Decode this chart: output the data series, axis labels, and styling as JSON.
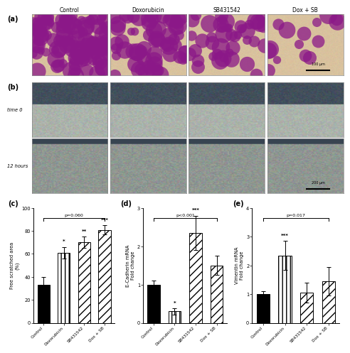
{
  "col_labels": [
    "Control",
    "Doxorubicin",
    "SB431542",
    "Dox + SB"
  ],
  "bar_categories": [
    "Control",
    "Doxorubicin",
    "SB431542",
    "Dox + SB"
  ],
  "c_values": [
    33,
    61,
    70,
    81
  ],
  "c_errors": [
    7,
    5,
    5,
    4
  ],
  "c_ylabel": "Free scratched area\n(%)",
  "c_ylim": [
    0,
    100
  ],
  "c_yticks": [
    0,
    20,
    40,
    60,
    80,
    100
  ],
  "c_pval": "p=0.060",
  "c_stars": [
    "*",
    "**",
    "***"
  ],
  "d_values": [
    1.0,
    0.3,
    2.35,
    1.5
  ],
  "d_errors": [
    0.1,
    0.08,
    0.45,
    0.25
  ],
  "d_ylabel": "E-Cadherin mRNA\nFold change",
  "d_ylim": [
    0,
    3
  ],
  "d_yticks": [
    0,
    1,
    2,
    3
  ],
  "d_pval": "p<0.001",
  "d_stars": [
    "*",
    "***",
    ""
  ],
  "e_values": [
    1.0,
    2.35,
    1.05,
    1.45
  ],
  "e_errors": [
    0.1,
    0.5,
    0.35,
    0.5
  ],
  "e_ylabel": "Vimentin mRNA\nFold change",
  "e_ylim": [
    0,
    4
  ],
  "e_yticks": [
    0,
    1,
    2,
    3,
    4
  ],
  "e_pval": "p=0.017",
  "e_stars": [
    "***",
    "",
    ""
  ],
  "hatch_patterns": [
    "",
    "|||",
    "///",
    "///"
  ],
  "bar_width": 0.6,
  "scale_bar_a": "100 μm",
  "scale_bar_b": "200 μm"
}
